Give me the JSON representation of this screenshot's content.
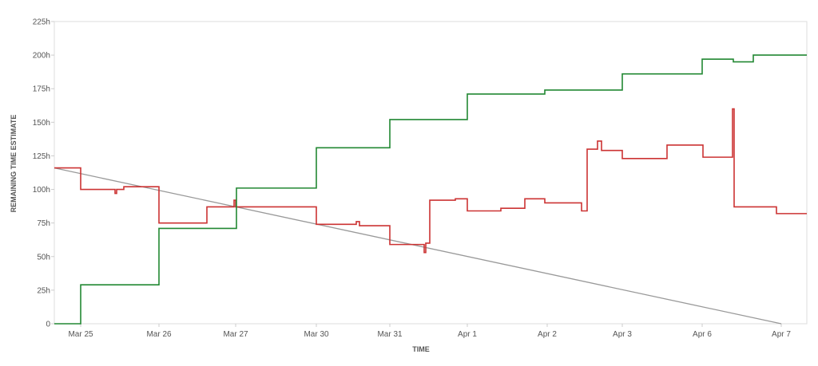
{
  "chart_data": {
    "type": "line",
    "title": "",
    "xlabel": "TIME",
    "ylabel": "REMAINING TIME ESTIMATE",
    "ylim": [
      0,
      225
    ],
    "yticks": [
      {
        "value": 0,
        "label": "0"
      },
      {
        "value": 25,
        "label": "25h"
      },
      {
        "value": 50,
        "label": "50h"
      },
      {
        "value": 75,
        "label": "75h"
      },
      {
        "value": 100,
        "label": "100h"
      },
      {
        "value": 125,
        "label": "125h"
      },
      {
        "value": 150,
        "label": "150h"
      },
      {
        "value": 175,
        "label": "175h"
      },
      {
        "value": 200,
        "label": "200h"
      },
      {
        "value": 225,
        "label": "225h"
      }
    ],
    "x_domain": [
      "Mar 24",
      "Apr 7"
    ],
    "xticks": [
      "Mar 25",
      "Mar 26",
      "Mar 27",
      "Mar 30",
      "Mar 31",
      "Apr 1",
      "Apr 2",
      "Apr 3",
      "Apr 6",
      "Apr 7"
    ],
    "grid": false,
    "legend": "none",
    "series": [
      {
        "id": "guideline",
        "color": "#999999",
        "step": false,
        "points": [
          [
            "Mar 24",
            116
          ],
          [
            "Apr 7",
            0
          ]
        ]
      },
      {
        "id": "remaining",
        "color": "#cc3333",
        "step": true,
        "points": [
          [
            "Mar 24",
            116
          ],
          [
            "Mar 25",
            100
          ],
          [
            "Mar 25",
            97
          ],
          [
            "Mar 25",
            100
          ],
          [
            "Mar 25",
            102
          ],
          [
            "Mar 26",
            75
          ],
          [
            "Mar 26",
            87
          ],
          [
            "Mar 27",
            92
          ],
          [
            "Mar 27",
            87
          ],
          [
            "Mar 30",
            74
          ],
          [
            "Mar 30",
            76
          ],
          [
            "Mar 30",
            73
          ],
          [
            "Mar 31",
            59
          ],
          [
            "Mar 31",
            53
          ],
          [
            "Mar 31",
            60
          ],
          [
            "Mar 31",
            92
          ],
          [
            "Mar 31",
            93
          ],
          [
            "Apr 1",
            84
          ],
          [
            "Apr 1",
            86
          ],
          [
            "Apr 1",
            93
          ],
          [
            "Apr 2",
            90
          ],
          [
            "Apr 2",
            84
          ],
          [
            "Apr 2",
            130
          ],
          [
            "Apr 2",
            136
          ],
          [
            "Apr 2",
            129
          ],
          [
            "Apr 3",
            123
          ],
          [
            "Apr 3",
            133
          ],
          [
            "Apr 6",
            124
          ],
          [
            "Apr 6",
            160
          ],
          [
            "Apr 6",
            87
          ],
          [
            "Apr 6",
            87
          ],
          [
            "Apr 7",
            82
          ],
          [
            "Apr 7",
            82
          ]
        ]
      },
      {
        "id": "logged",
        "color": "#228833",
        "step": true,
        "points": [
          [
            "Mar 24",
            0
          ],
          [
            "Mar 25",
            29
          ],
          [
            "Mar 26",
            71
          ],
          [
            "Mar 27",
            101
          ],
          [
            "Mar 30",
            131
          ],
          [
            "Mar 31",
            152
          ],
          [
            "Apr 1",
            171
          ],
          [
            "Apr 2",
            174
          ],
          [
            "Apr 3",
            186
          ],
          [
            "Apr 6",
            197
          ],
          [
            "Apr 6",
            195
          ],
          [
            "Apr 7",
            200
          ],
          [
            "Apr 7",
            200
          ]
        ]
      }
    ]
  }
}
